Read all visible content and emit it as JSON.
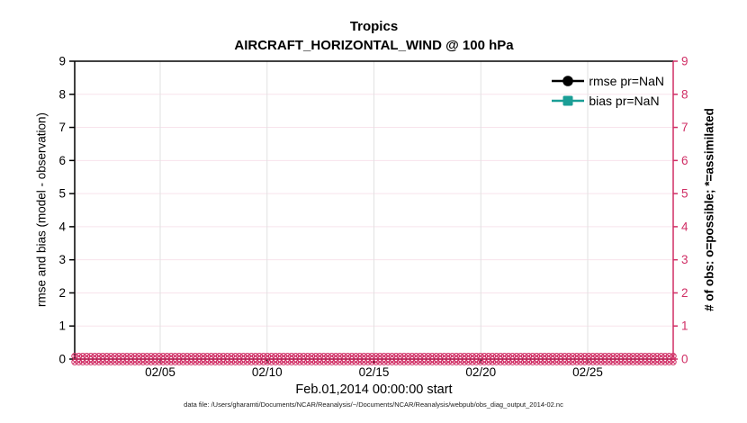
{
  "window": {
    "background": "#ffffff"
  },
  "title": {
    "line1": "Tropics",
    "line2": "AIRCRAFT_HORIZONTAL_WIND @ 100 hPa"
  },
  "footer": {
    "text": "data file: /Users/gharamti/Documents/NCAR/Reanalysis/~/Documents/NCAR/Reanalysis/webpub/obs_diag_output_2014-02.nc"
  },
  "colors": {
    "axis_left": "#000000",
    "axis_right": "#D02E65",
    "obs_markers": "#D02E65",
    "rmse": "#000000",
    "bias": "#1B9E96",
    "grid_horizontal": "#F8E3EC",
    "grid_vertical": "#E2E2E2",
    "background": "#ffffff"
  },
  "chart_data": {
    "type": "line",
    "title": "Tropics",
    "subtitle": "AIRCRAFT_HORIZONTAL_WIND @ 100 hPa",
    "xlabel": "Feb.01,2014 00:00:00 start",
    "ylabel_left": "rmse and bias (model - observation)",
    "ylabel_right": "# of obs: o=possible; *=assimilated",
    "ylim_left": [
      0,
      9
    ],
    "ylim_right": [
      0,
      9
    ],
    "yticks": [
      0,
      1,
      2,
      3,
      4,
      5,
      6,
      7,
      8,
      9
    ],
    "xlim_days": [
      0,
      28
    ],
    "xticks": [
      {
        "label": "02/05",
        "day": 4
      },
      {
        "label": "02/10",
        "day": 9
      },
      {
        "label": "02/15",
        "day": 14
      },
      {
        "label": "02/20",
        "day": 19
      },
      {
        "label": "02/25",
        "day": 24
      }
    ],
    "grid": true,
    "legend": {
      "position": "top-right",
      "box": false,
      "items": [
        {
          "label": "rmse pr=NaN",
          "color": "#000000",
          "marker": "circle"
        },
        {
          "label": "bias pr=NaN",
          "color": "#1B9E96",
          "marker": "square"
        }
      ]
    },
    "series": [
      {
        "name": "rmse",
        "legend": "rmse pr=NaN",
        "color": "#000000",
        "marker": "circle",
        "values": []
      },
      {
        "name": "bias",
        "legend": "bias pr=NaN",
        "color": "#1B9E96",
        "marker": "square",
        "values": []
      },
      {
        "name": "obs-possible",
        "marker": "o",
        "color": "#D02E65",
        "y_constant": 0,
        "count": 150
      },
      {
        "name": "obs-assimilated",
        "marker": "*",
        "color": "#D02E65",
        "y_constant": 0,
        "count": 150
      }
    ]
  }
}
